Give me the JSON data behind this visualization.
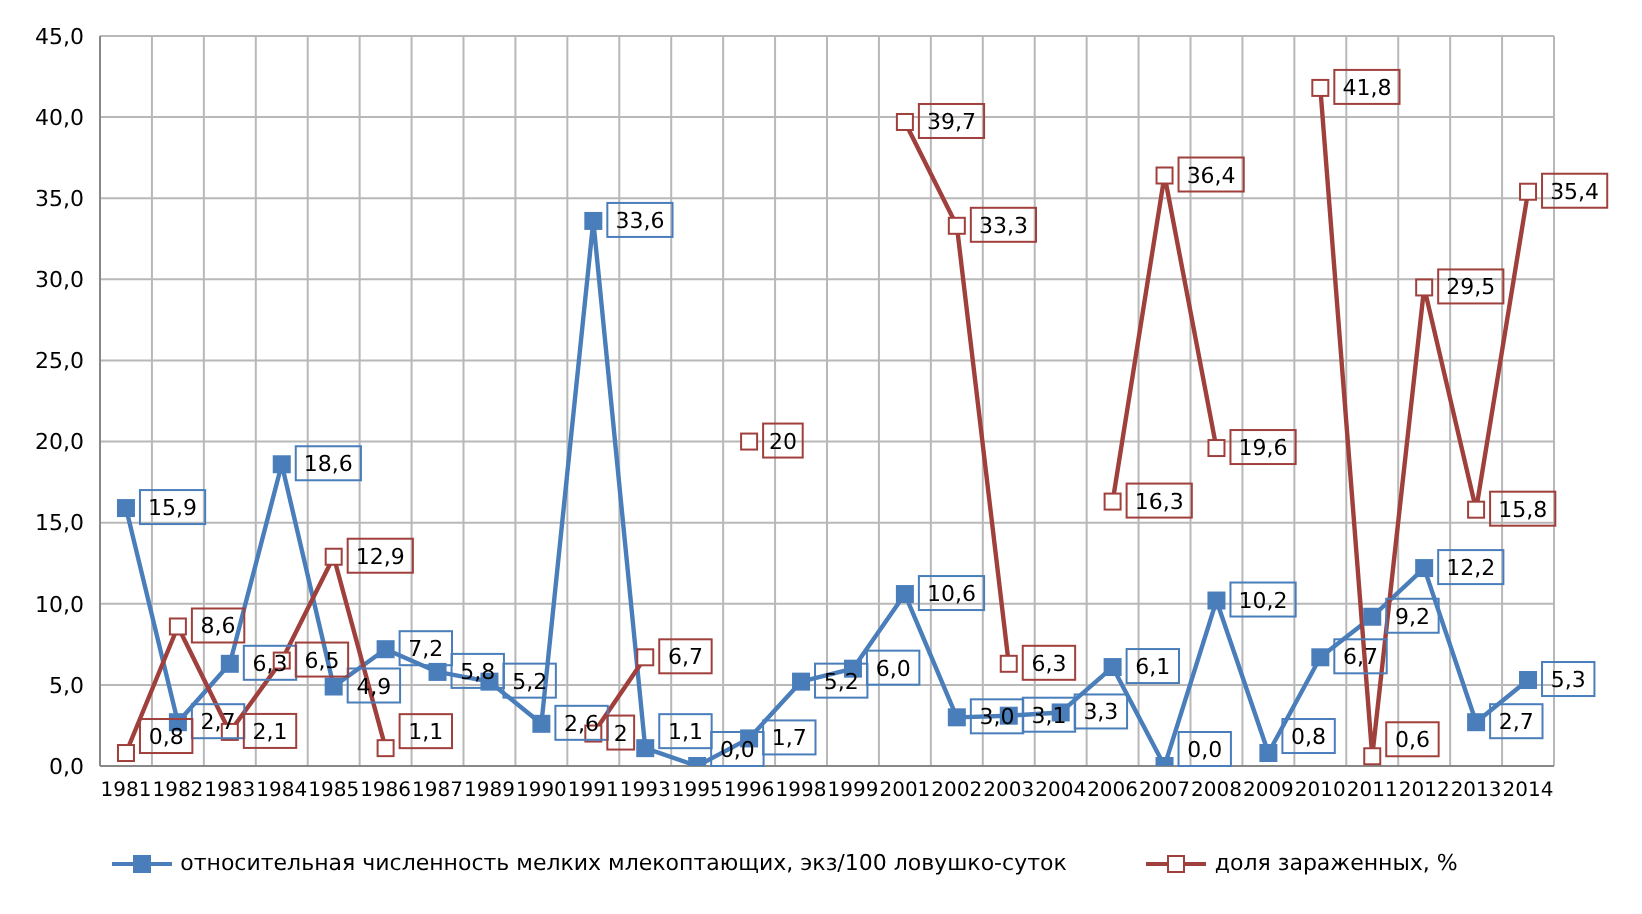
{
  "chart_data": {
    "type": "line",
    "categories": [
      "1981",
      "1982",
      "1983",
      "1984",
      "1985",
      "1986",
      "1987",
      "1989",
      "1990",
      "1991",
      "1993",
      "1995",
      "1996",
      "1998",
      "1999",
      "2001",
      "2002",
      "2003",
      "2004",
      "2006",
      "2007",
      "2008",
      "2009",
      "2010",
      "2011",
      "2012",
      "2013",
      "2014"
    ],
    "series": [
      {
        "name": "относительная численность мелких млекоптающих, экз/100 ловушко-суток",
        "color": "#4a7ebb",
        "values": [
          15.9,
          2.7,
          6.3,
          18.6,
          4.9,
          7.2,
          5.8,
          5.2,
          2.6,
          33.6,
          1.1,
          0.0,
          1.7,
          5.2,
          6.0,
          10.6,
          3.0,
          3.1,
          3.3,
          6.1,
          0.0,
          10.2,
          0.8,
          6.7,
          9.2,
          12.2,
          2.7,
          5.3
        ],
        "value_labels": [
          "15,9",
          "2,7",
          "6,3",
          "18,6",
          "4,9",
          "7,2",
          "5,8",
          "5,2",
          "2,6",
          "33,6",
          "1,1",
          "0,0",
          "1,7",
          "5,2",
          "6,0",
          "10,6",
          "3,0",
          "3,1",
          "3,3",
          "6,1",
          "0,0",
          "10,2",
          "0,8",
          "6,7",
          "9,2",
          "12,2",
          "2,7",
          "5,3"
        ]
      },
      {
        "name": "доля зараженных, %",
        "color": "#a0403c",
        "values": [
          0.8,
          8.6,
          2.1,
          6.5,
          12.9,
          1.1,
          null,
          null,
          null,
          2,
          6.7,
          null,
          20,
          null,
          null,
          39.7,
          33.3,
          6.3,
          null,
          16.3,
          36.4,
          19.6,
          null,
          41.8,
          0.6,
          29.5,
          15.8,
          35.4
        ],
        "value_labels": [
          "0,8",
          "8,6",
          "2,1",
          "6,5",
          "12,9",
          "1,1",
          null,
          null,
          null,
          "2",
          "6,7",
          null,
          "20",
          null,
          null,
          "39,7",
          "33,3",
          "6,3",
          null,
          "16,3",
          "36,4",
          "19,6",
          null,
          "41,8",
          "0,6",
          "29,5",
          "15,8",
          "35,4"
        ]
      }
    ],
    "ylim": [
      0,
      45
    ],
    "yticks": [
      {
        "value": 0,
        "label": "0,0"
      },
      {
        "value": 5,
        "label": "5,0"
      },
      {
        "value": 10,
        "label": "10,0"
      },
      {
        "value": 15,
        "label": "15,0"
      },
      {
        "value": 20,
        "label": "20,0"
      },
      {
        "value": 25,
        "label": "25,0"
      },
      {
        "value": 30,
        "label": "30,0"
      },
      {
        "value": 35,
        "label": "35,0"
      },
      {
        "value": 40,
        "label": "40,0"
      },
      {
        "value": 45,
        "label": "45,0"
      }
    ],
    "grid": true,
    "legend": "bottom",
    "marker": "square",
    "line_style": "solid"
  }
}
